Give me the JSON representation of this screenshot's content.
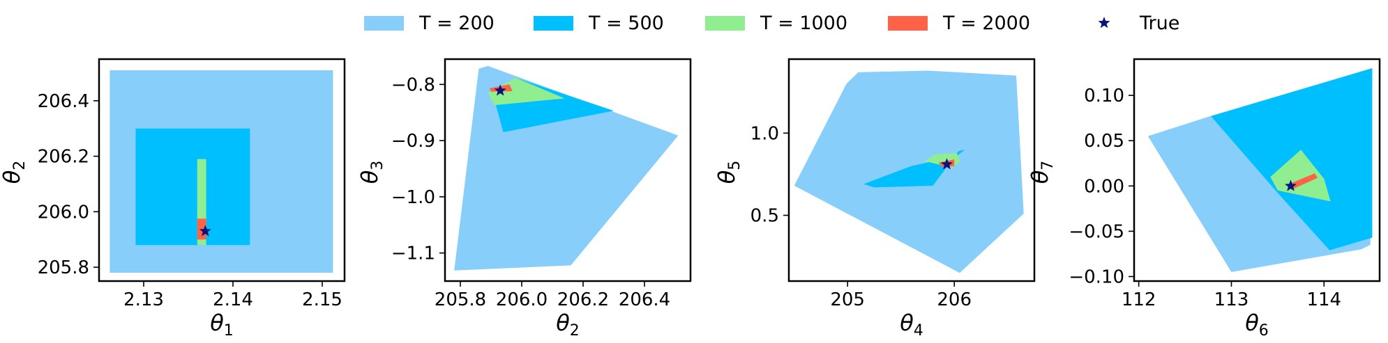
{
  "legend": {
    "items": [
      {
        "label": "T = 200",
        "color": "#87CEFA",
        "marker": "patch"
      },
      {
        "label": "T = 500",
        "color": "#00BFFF",
        "marker": "patch"
      },
      {
        "label": "T = 1000",
        "color": "#90EE90",
        "marker": "patch"
      },
      {
        "label": "T = 2000",
        "color": "#FF6347",
        "marker": "patch"
      },
      {
        "label": "True",
        "color": "#0B1478",
        "marker": "star"
      }
    ]
  },
  "chart_data": [
    {
      "type": "area",
      "xlabel": "θ1",
      "ylabel": "θ2",
      "xlim": [
        2.125,
        2.1525
      ],
      "ylim": [
        205.75,
        206.55
      ],
      "xticks": [
        {
          "v": 2.13,
          "label": "2.13"
        },
        {
          "v": 2.14,
          "label": "2.14"
        },
        {
          "v": 2.15,
          "label": "2.15"
        }
      ],
      "yticks": [
        {
          "v": 205.8,
          "label": "205.8"
        },
        {
          "v": 206.0,
          "label": "206.0"
        },
        {
          "v": 206.2,
          "label": "206.2"
        },
        {
          "v": 206.4,
          "label": "206.4"
        }
      ],
      "series": [
        {
          "name": "T = 200",
          "color": "#87CEFA",
          "polygon": [
            [
              2.1262,
              205.78
            ],
            [
              2.1512,
              205.78
            ],
            [
              2.1512,
              206.51
            ],
            [
              2.1262,
              206.51
            ]
          ]
        },
        {
          "name": "T = 500",
          "color": "#00BFFF",
          "polygon": [
            [
              2.1291,
              205.88
            ],
            [
              2.1419,
              205.88
            ],
            [
              2.1419,
              206.3
            ],
            [
              2.1291,
              206.3
            ]
          ]
        },
        {
          "name": "T = 1000",
          "color": "#90EE90",
          "polygon": [
            [
              2.136,
              205.88
            ],
            [
              2.137,
              205.88
            ],
            [
              2.137,
              206.19
            ],
            [
              2.136,
              206.19
            ]
          ]
        },
        {
          "name": "T = 2000",
          "color": "#FF6347",
          "polygon": [
            [
              2.136,
              205.9
            ],
            [
              2.137,
              205.9
            ],
            [
              2.137,
              205.975
            ],
            [
              2.136,
              205.975
            ]
          ]
        }
      ],
      "true_value": [
        2.1369,
        205.93
      ]
    },
    {
      "type": "area",
      "xlabel": "θ2",
      "ylabel": "θ3",
      "xlim": [
        205.75,
        206.55
      ],
      "ylim": [
        -1.15,
        -0.755
      ],
      "xticks": [
        {
          "v": 205.8,
          "label": "205.8"
        },
        {
          "v": 206.0,
          "label": "206.0"
        },
        {
          "v": 206.2,
          "label": "206.2"
        },
        {
          "v": 206.4,
          "label": "206.4"
        }
      ],
      "yticks": [
        {
          "v": -1.1,
          "label": "−1.1"
        },
        {
          "v": -1.0,
          "label": "−1.0"
        },
        {
          "v": -0.9,
          "label": "−0.9"
        },
        {
          "v": -0.8,
          "label": "−0.8"
        }
      ],
      "series": [
        {
          "name": "T = 200",
          "color": "#87CEFA",
          "polygon": [
            [
              205.86,
              -0.772
            ],
            [
              205.89,
              -0.767
            ],
            [
              206.51,
              -0.891
            ],
            [
              206.16,
              -1.122
            ],
            [
              205.78,
              -1.131
            ]
          ]
        },
        {
          "name": "T = 500",
          "color": "#00BFFF",
          "polygon": [
            [
              205.905,
              -0.815
            ],
            [
              205.98,
              -0.788
            ],
            [
              206.3,
              -0.847
            ],
            [
              205.94,
              -0.885
            ]
          ]
        },
        {
          "name": "T = 1000",
          "color": "#90EE90",
          "polygon": [
            [
              205.89,
              -0.815
            ],
            [
              205.98,
              -0.788
            ],
            [
              206.14,
              -0.825
            ],
            [
              205.91,
              -0.837
            ]
          ]
        },
        {
          "name": "T = 2000",
          "color": "#FF6347",
          "polygon": [
            [
              205.895,
              -0.807
            ],
            [
              205.96,
              -0.8
            ],
            [
              205.97,
              -0.812
            ],
            [
              205.9,
              -0.813
            ]
          ]
        }
      ],
      "true_value": [
        205.93,
        -0.811
      ]
    },
    {
      "type": "area",
      "xlabel": "θ4",
      "ylabel": "θ5",
      "xlim": [
        204.45,
        206.75
      ],
      "ylim": [
        0.1,
        1.45
      ],
      "xticks": [
        {
          "v": 205,
          "label": "205"
        },
        {
          "v": 206,
          "label": "206"
        }
      ],
      "yticks": [
        {
          "v": 0.5,
          "label": "0.5"
        },
        {
          "v": 1.0,
          "label": "1.0"
        }
      ],
      "series": [
        {
          "name": "T = 200",
          "color": "#87CEFA",
          "polygon": [
            [
              204.99,
              1.3
            ],
            [
              205.1,
              1.37
            ],
            [
              205.75,
              1.38
            ],
            [
              206.58,
              1.35
            ],
            [
              206.65,
              0.51
            ],
            [
              206.05,
              0.15
            ],
            [
              204.5,
              0.68
            ]
          ]
        },
        {
          "name": "T = 500",
          "color": "#00BFFF",
          "polygon": [
            [
              205.15,
              0.69
            ],
            [
              205.6,
              0.8
            ],
            [
              206.02,
              0.86
            ],
            [
              206.1,
              0.9
            ],
            [
              206.04,
              0.89
            ],
            [
              205.8,
              0.68
            ],
            [
              205.25,
              0.67
            ]
          ]
        },
        {
          "name": "T = 1000",
          "color": "#90EE90",
          "polygon": [
            [
              205.72,
              0.83
            ],
            [
              205.82,
              0.87
            ],
            [
              206.02,
              0.88
            ],
            [
              206.06,
              0.83
            ],
            [
              205.98,
              0.79
            ]
          ]
        },
        {
          "name": "T = 2000",
          "color": "#FF6347",
          "polygon": [
            [
              205.85,
              0.82
            ],
            [
              206.0,
              0.84
            ],
            [
              206.0,
              0.8
            ],
            [
              205.9,
              0.79
            ]
          ]
        }
      ],
      "true_value": [
        205.93,
        0.81
      ]
    },
    {
      "type": "area",
      "xlabel": "θ6",
      "ylabel": "θ7",
      "xlim": [
        111.95,
        114.6
      ],
      "ylim": [
        -0.105,
        0.14
      ],
      "xticks": [
        {
          "v": 112,
          "label": "112"
        },
        {
          "v": 113,
          "label": "113"
        },
        {
          "v": 114,
          "label": "114"
        }
      ],
      "yticks": [
        {
          "v": -0.1,
          "label": "−0.10"
        },
        {
          "v": -0.05,
          "label": "−0.05"
        },
        {
          "v": 0.0,
          "label": "0.00"
        },
        {
          "v": 0.05,
          "label": "0.05"
        },
        {
          "v": 0.1,
          "label": "0.10"
        }
      ],
      "series": [
        {
          "name": "T = 200",
          "color": "#87CEFA",
          "polygon": [
            [
              112.1,
              0.055
            ],
            [
              112.8,
              0.078
            ],
            [
              114.52,
              0.13
            ],
            [
              114.5,
              -0.065
            ],
            [
              114.4,
              -0.07
            ],
            [
              113.0,
              -0.095
            ]
          ]
        },
        {
          "name": "T = 500",
          "color": "#00BFFF",
          "polygon": [
            [
              112.78,
              0.077
            ],
            [
              114.52,
              0.13
            ],
            [
              114.52,
              -0.057
            ],
            [
              114.06,
              -0.071
            ],
            [
              113.52,
              -0.01
            ]
          ]
        },
        {
          "name": "T = 1000",
          "color": "#90EE90",
          "polygon": [
            [
              113.42,
              0.01
            ],
            [
              113.75,
              0.04
            ],
            [
              114.0,
              0.008
            ],
            [
              114.07,
              -0.017
            ],
            [
              113.5,
              -0.005
            ]
          ]
        },
        {
          "name": "T = 2000",
          "color": "#FF6347",
          "polygon": [
            [
              113.62,
              0.002
            ],
            [
              113.9,
              0.014
            ],
            [
              113.93,
              0.009
            ],
            [
              113.65,
              -0.004
            ]
          ]
        }
      ],
      "true_value": [
        113.64,
        0.0
      ]
    }
  ]
}
